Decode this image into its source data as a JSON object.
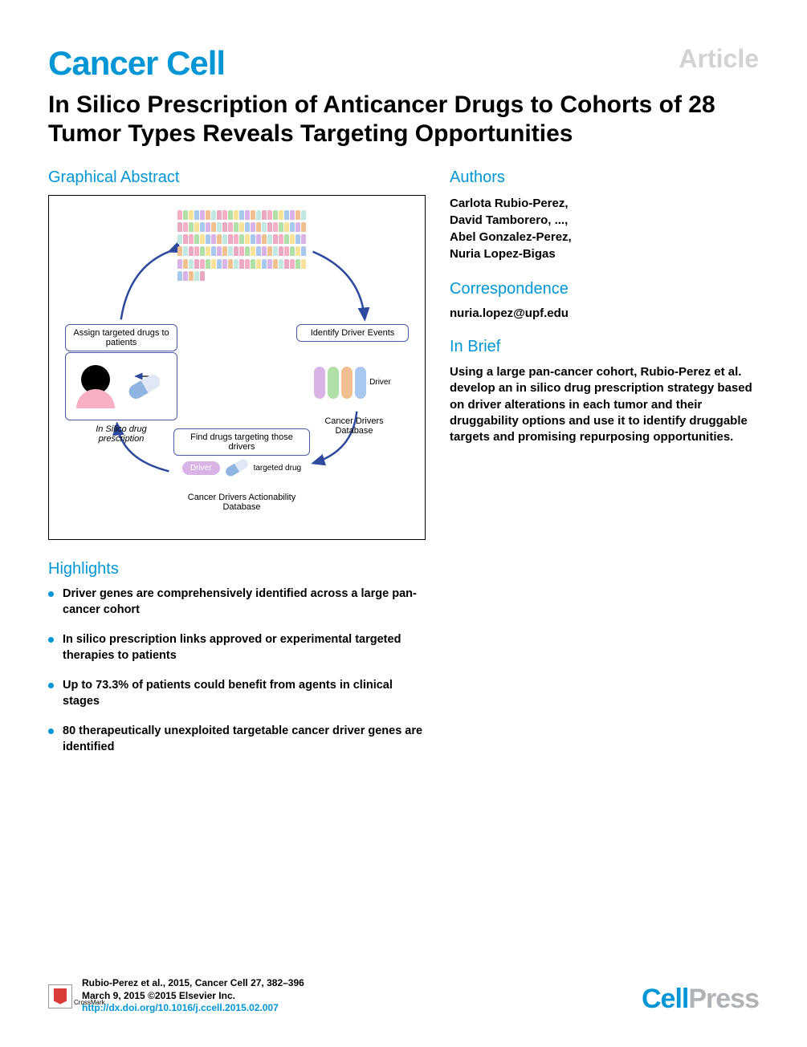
{
  "header": {
    "journal_name": "Cancer Cell",
    "article_label": "Article"
  },
  "title": "In Silico Prescription of Anticancer Drugs to Cohorts of 28 Tumor Types Reveals Targeting Opportunities",
  "graphical_abstract": {
    "heading": "Graphical Abstract",
    "cohort_colors": [
      "#f7b0c3",
      "#b0e0a8",
      "#f7e29a",
      "#a8c8f0",
      "#d9b3e6",
      "#f0c090",
      "#c0e8e0",
      "#e8a8c0"
    ],
    "nodes": {
      "assign": {
        "label": "Assign targeted drugs to patients",
        "caption": "In Silico drug prescription"
      },
      "identify": {
        "label": "Identify Driver Events",
        "caption": "Cancer Drivers Database",
        "driver_text": "Driver",
        "helix_colors": [
          "#d9b3e6",
          "#b0e0a8",
          "#f0c090",
          "#a8c8f0"
        ]
      },
      "find": {
        "label": "Find drugs targeting those drivers",
        "caption": "Cancer Drivers Actionability Database",
        "driver_chip": "Driver",
        "pill_label": "targeted drug"
      }
    },
    "arrow_color": "#2e4a9e"
  },
  "highlights": {
    "heading": "Highlights",
    "items": [
      "Driver genes are comprehensively identified across a large pan-cancer cohort",
      "In silico prescription links approved or experimental targeted therapies to patients",
      "Up to 73.3% of patients could benefit from agents in clinical stages",
      "80 therapeutically unexploited targetable cancer driver genes are identified"
    ]
  },
  "authors": {
    "heading": "Authors",
    "list": "Carlota Rubio-Perez,\nDavid Tamborero, ...,\nAbel Gonzalez-Perez,\nNuria Lopez-Bigas"
  },
  "correspondence": {
    "heading": "Correspondence",
    "email": "nuria.lopez@upf.edu"
  },
  "in_brief": {
    "heading": "In Brief",
    "text": "Using a large pan-cancer cohort, Rubio-Perez et al. develop an in silico drug prescription strategy based on driver alterations in each tumor and their druggability options and use it to identify druggable targets and promising repurposing opportunities."
  },
  "footer": {
    "crossmark_label": "CrossMark",
    "citation_line1": "Rubio-Perez et al., 2015, Cancer Cell 27, 382–396",
    "citation_line2": "March 9, 2015 ©2015 Elsevier Inc.",
    "doi": "http://dx.doi.org/10.1016/j.ccell.2015.02.007",
    "publisher_part1": "Cell",
    "publisher_part2": "Press"
  }
}
